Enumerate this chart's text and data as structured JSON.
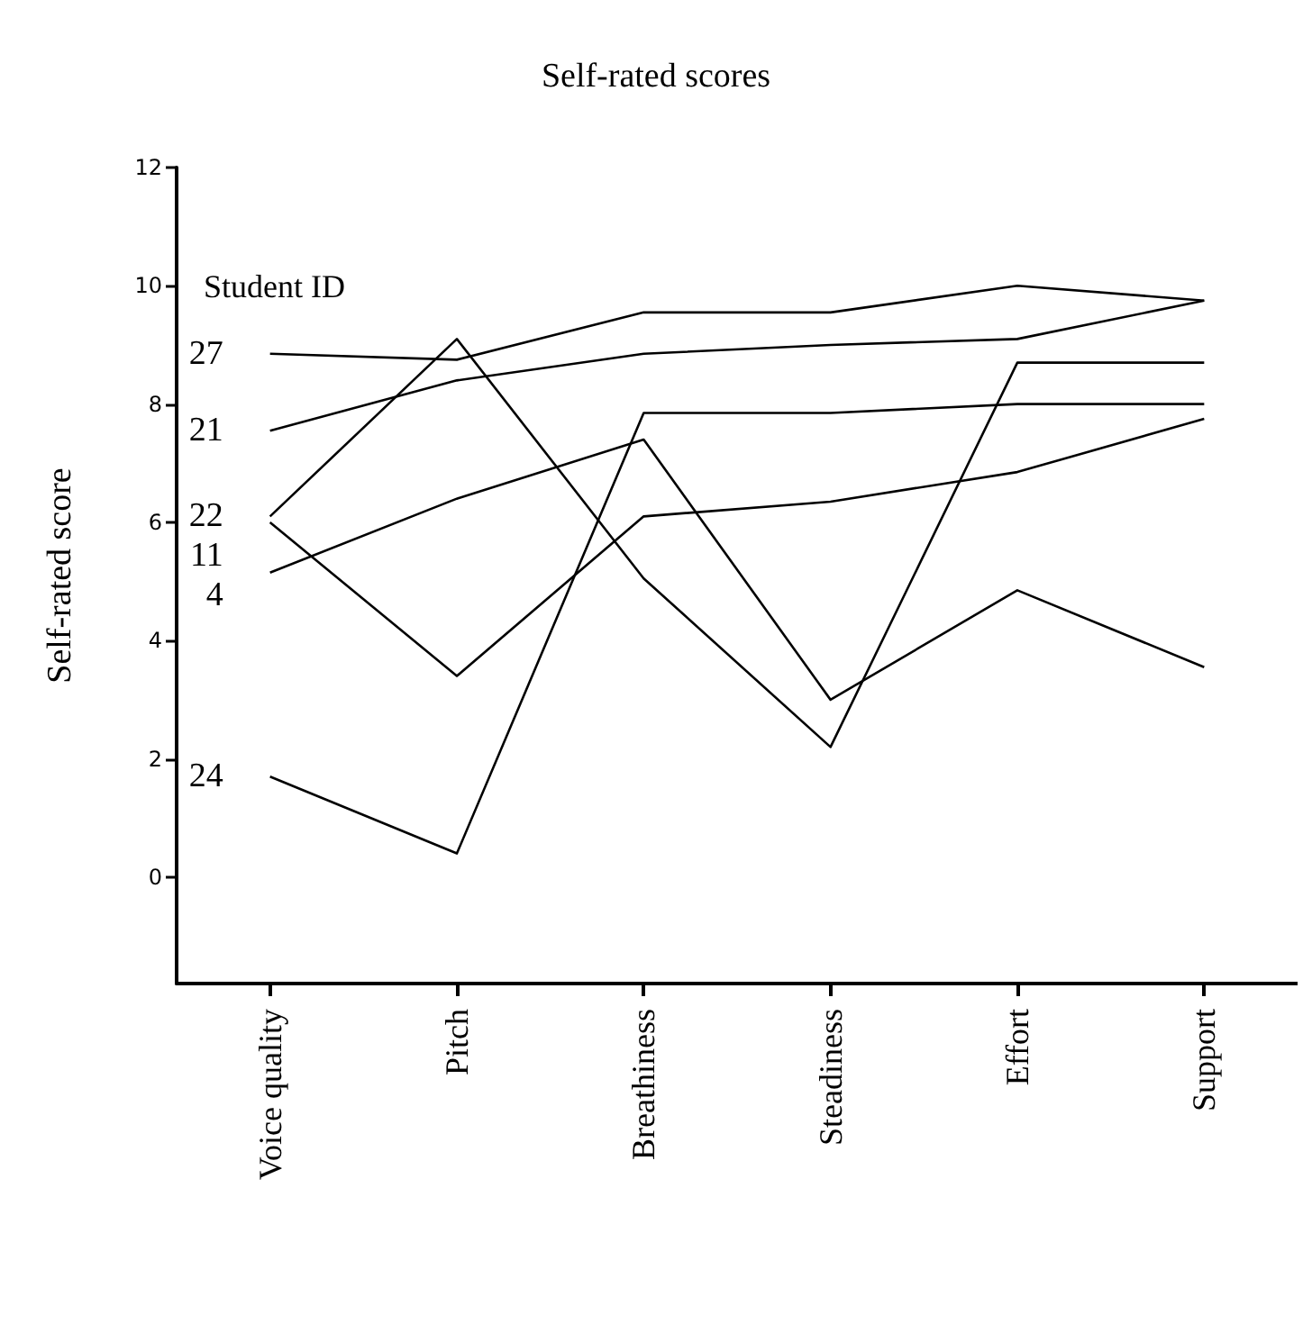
{
  "chart_data": {
    "type": "line",
    "title": "Self-rated scores",
    "ylabel": "Self-rated score",
    "legend_title": "Student ID",
    "categories": [
      "Voice quality",
      "Pitch",
      "Breathiness",
      "Steadiness",
      "Effort",
      "Support"
    ],
    "series": [
      {
        "name": "27",
        "color": "#000000",
        "values": [
          8.85,
          8.75,
          9.55,
          9.55,
          10.0,
          9.75
        ]
      },
      {
        "name": "21",
        "color": "#000000",
        "values": [
          7.55,
          8.4,
          8.85,
          9.0,
          9.1,
          9.75
        ]
      },
      {
        "name": "22",
        "color": "#000000",
        "values": [
          6.1,
          9.1,
          5.05,
          2.2,
          8.7,
          8.7
        ]
      },
      {
        "name": "11",
        "color": "#000000",
        "values": [
          6.0,
          3.4,
          6.1,
          6.35,
          6.85,
          7.75
        ]
      },
      {
        "name": "4",
        "color": "#000000",
        "values": [
          5.15,
          6.4,
          7.4,
          3.0,
          4.85,
          3.55
        ]
      },
      {
        "name": "24",
        "color": "#000000",
        "values": [
          1.7,
          0.4,
          7.85,
          7.85,
          8.0,
          8.0
        ]
      }
    ],
    "ylim": [
      -1.8,
      12
    ],
    "yticks": [
      0,
      2,
      4,
      6,
      8,
      10,
      12
    ],
    "grid": false,
    "legend": false,
    "marker": "none",
    "line_style": "solid"
  }
}
